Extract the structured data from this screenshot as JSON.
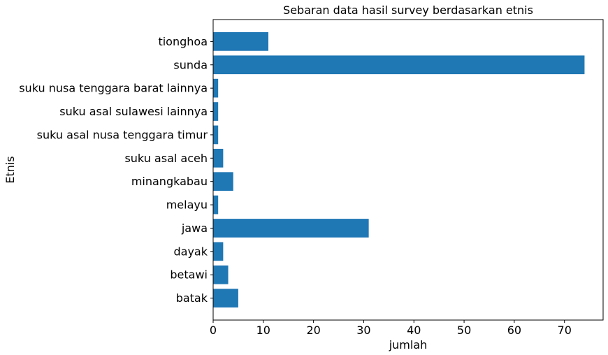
{
  "chart_data": {
    "type": "bar",
    "orientation": "horizontal",
    "title": "Sebaran data hasil survey berdasarkan etnis",
    "xlabel": "jumlah",
    "ylabel": "Etnis",
    "categories": [
      "batak",
      "betawi",
      "dayak",
      "jawa",
      "melayu",
      "minangkabau",
      "suku asal aceh",
      "suku asal nusa tenggara timur",
      "suku asal sulawesi lainnya",
      "suku nusa tenggara barat lainnya",
      "sunda",
      "tionghoa"
    ],
    "values": [
      5,
      3,
      2,
      31,
      1,
      4,
      2,
      1,
      1,
      1,
      74,
      11
    ],
    "xlim": [
      0,
      77.7
    ],
    "xticks": [
      0,
      10,
      20,
      30,
      40,
      50,
      60,
      70
    ],
    "bar_color": "#1f77b4",
    "grid": false,
    "legend": "none"
  }
}
